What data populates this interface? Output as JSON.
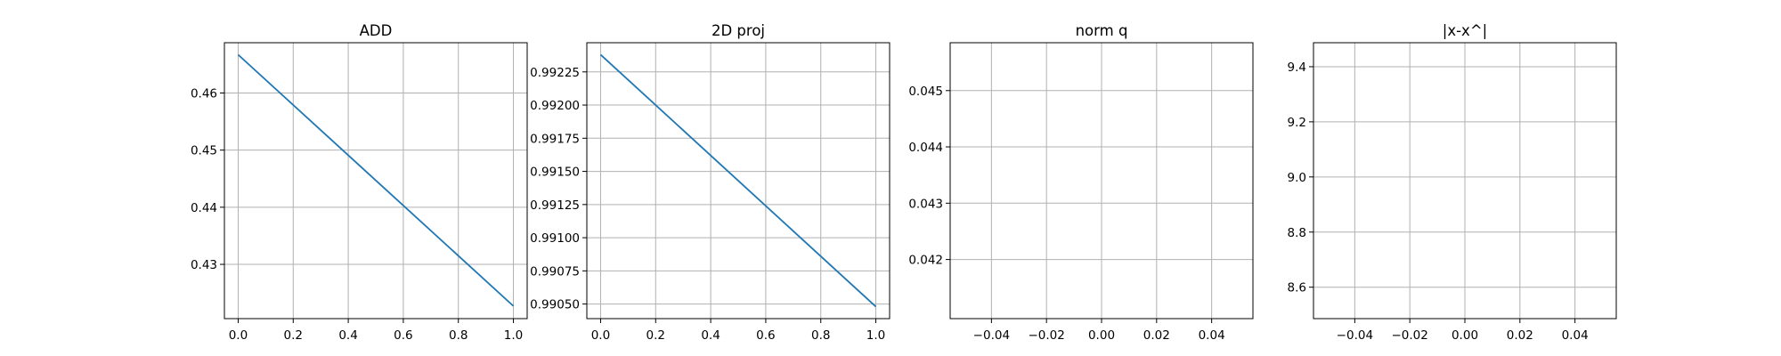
{
  "colors": {
    "series": "#1f77b4",
    "grid": "#b0b0b0",
    "axes": "#000000",
    "background": "#ffffff"
  },
  "chart_data": [
    {
      "type": "line",
      "title": "ADD",
      "xlabel": "",
      "ylabel": "",
      "grid": true,
      "xlim": [
        -0.05,
        1.05
      ],
      "ylim": [
        0.4205,
        0.4688
      ],
      "xticks": [
        0.0,
        0.2,
        0.4,
        0.6,
        0.8,
        1.0
      ],
      "xtick_labels": [
        "0.0",
        "0.2",
        "0.4",
        "0.6",
        "0.8",
        "1.0"
      ],
      "yticks": [
        0.43,
        0.44,
        0.45,
        0.46
      ],
      "ytick_labels": [
        "0.43",
        "0.44",
        "0.45",
        "0.46"
      ],
      "series": [
        {
          "x": [
            0,
            1
          ],
          "y": [
            0.4667,
            0.4227
          ]
        }
      ]
    },
    {
      "type": "line",
      "title": "2D proj",
      "xlabel": "",
      "ylabel": "",
      "grid": true,
      "xlim": [
        -0.05,
        1.05
      ],
      "ylim": [
        0.99039,
        0.99247
      ],
      "xticks": [
        0.0,
        0.2,
        0.4,
        0.6,
        0.8,
        1.0
      ],
      "xtick_labels": [
        "0.0",
        "0.2",
        "0.4",
        "0.6",
        "0.8",
        "1.0"
      ],
      "yticks": [
        0.9905,
        0.99075,
        0.991,
        0.99125,
        0.9915,
        0.99175,
        0.992,
        0.99225
      ],
      "ytick_labels": [
        "0.99050",
        "0.99075",
        "0.99100",
        "0.99125",
        "0.99150",
        "0.99175",
        "0.99200",
        "0.99225"
      ],
      "series": [
        {
          "x": [
            0,
            1
          ],
          "y": [
            0.99238,
            0.99048
          ]
        }
      ]
    },
    {
      "type": "line",
      "title": "norm q",
      "xlabel": "",
      "ylabel": "",
      "grid": true,
      "xlim": [
        -0.055,
        0.055
      ],
      "ylim": [
        0.04095,
        0.04585
      ],
      "xticks": [
        -0.04,
        -0.02,
        0.0,
        0.02,
        0.04
      ],
      "xtick_labels": [
        "−0.04",
        "−0.02",
        "0.00",
        "0.02",
        "0.04"
      ],
      "yticks": [
        0.042,
        0.043,
        0.044,
        0.045
      ],
      "ytick_labels": [
        "0.042",
        "0.043",
        "0.044",
        "0.045"
      ],
      "series": []
    },
    {
      "type": "line",
      "title": "|x-x^|",
      "xlabel": "",
      "ylabel": "",
      "grid": true,
      "xlim": [
        -0.055,
        0.055
      ],
      "ylim": [
        8.486,
        9.487
      ],
      "xticks": [
        -0.04,
        -0.02,
        0.0,
        0.02,
        0.04
      ],
      "xtick_labels": [
        "−0.04",
        "−0.02",
        "0.00",
        "0.02",
        "0.04"
      ],
      "yticks": [
        8.6,
        8.8,
        9.0,
        9.2,
        9.4
      ],
      "ytick_labels": [
        "8.6",
        "8.8",
        "9.0",
        "9.2",
        "9.4"
      ],
      "series": []
    }
  ]
}
